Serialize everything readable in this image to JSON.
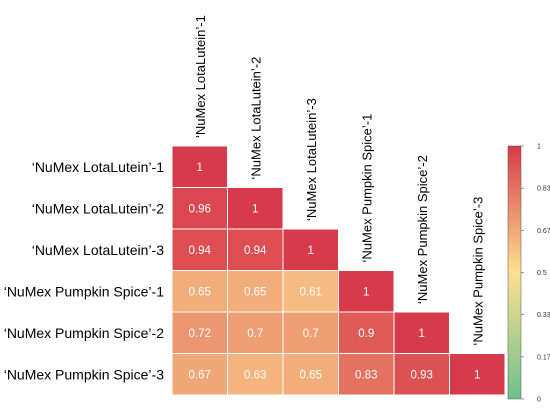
{
  "chart_data": {
    "type": "heatmap",
    "title": "",
    "xlabel": "",
    "ylabel": "",
    "layout": "lower-triangle",
    "grid": true,
    "labels": [
      "‘NuMex LotaLutein’-1",
      "‘NuMex LotaLutein’-2",
      "‘NuMex LotaLutein’-3",
      "‘NuMex Pumpkin Spice’-1",
      "‘NuMex Pumpkin Spice’-2",
      "‘NuMex Pumpkin Spice’-3"
    ],
    "matrix": [
      [
        1
      ],
      [
        0.96,
        1
      ],
      [
        0.94,
        0.94,
        1
      ],
      [
        0.65,
        0.65,
        0.61,
        1
      ],
      [
        0.72,
        0.7,
        0.7,
        0.9,
        1
      ],
      [
        0.67,
        0.63,
        0.65,
        0.83,
        0.93,
        1
      ]
    ],
    "value_labels": [
      [
        "1"
      ],
      [
        "0.96",
        "1"
      ],
      [
        "0.94",
        "0.94",
        "1"
      ],
      [
        "0.65",
        "0.65",
        "0.61",
        "1"
      ],
      [
        "0.72",
        "0.7",
        "0.7",
        "0.9",
        "1"
      ],
      [
        "0.67",
        "0.63",
        "0.65",
        "0.83",
        "0.93",
        "1"
      ]
    ],
    "colorbar": {
      "range": [
        0,
        1
      ],
      "ticks": [
        "0",
        "0.17",
        "0.33",
        "0.5",
        "0.67",
        "0.83",
        "1"
      ],
      "colors": [
        "#6fbf8f",
        "#fde08f",
        "#d73a4a"
      ],
      "placement": "right"
    },
    "colors": {
      "low": "#6fbf8f",
      "mid": "#fde08f",
      "high": "#d73a4a",
      "cell_text": "#ffffff",
      "grid_line": "#ffffff",
      "label_text": "#000000"
    }
  }
}
